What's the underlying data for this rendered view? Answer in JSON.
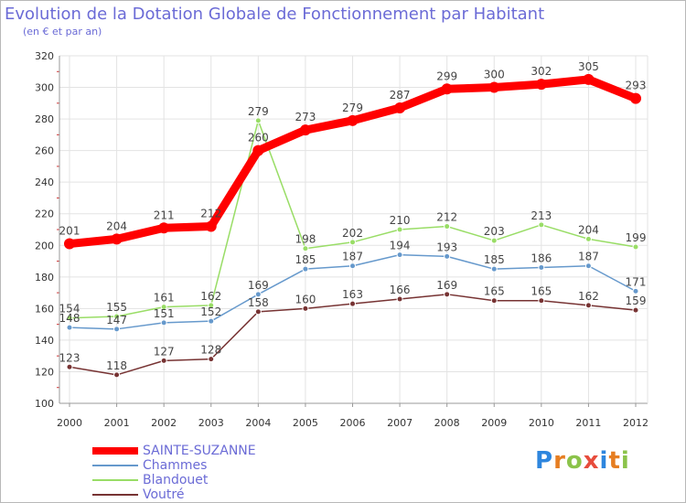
{
  "chart_data": {
    "type": "line",
    "title": "Evolution de la Dotation Globale de Fonctionnement par Habitant",
    "subtitle": "(en € et par an)",
    "xlabel": "",
    "ylabel": "",
    "ylim": [
      100,
      320
    ],
    "yticks": [
      100,
      120,
      140,
      160,
      180,
      200,
      220,
      240,
      260,
      280,
      300,
      320
    ],
    "categories": [
      "2000",
      "2001",
      "2002",
      "2003",
      "2004",
      "2005",
      "2006",
      "2007",
      "2008",
      "2009",
      "2010",
      "2011",
      "2012"
    ],
    "grid": true,
    "legend_position": "bottom-left",
    "series": [
      {
        "name": "SAINTE-SUZANNE",
        "color": "#ff0000",
        "values": [
          201,
          204,
          211,
          212,
          260,
          273,
          279,
          287,
          299,
          300,
          302,
          305,
          293
        ]
      },
      {
        "name": "Chammes",
        "color": "#6699cc",
        "values": [
          148,
          147,
          151,
          152,
          169,
          185,
          187,
          194,
          193,
          185,
          186,
          187,
          171
        ]
      },
      {
        "name": "Blandouet",
        "color": "#99dd66",
        "values": [
          154,
          155,
          161,
          162,
          279,
          198,
          202,
          210,
          212,
          203,
          213,
          204,
          199
        ]
      },
      {
        "name": "Voutré",
        "color": "#773333",
        "values": [
          123,
          118,
          127,
          128,
          158,
          160,
          163,
          166,
          169,
          165,
          165,
          162,
          159
        ]
      }
    ]
  },
  "brand": {
    "letters": [
      "P",
      "r",
      "o",
      "x",
      "i",
      "t",
      "i"
    ],
    "colors": [
      "#2e86de",
      "#e67e22",
      "#8bc34a",
      "#e74c3c",
      "#2e86de",
      "#e67e22",
      "#8bc34a"
    ]
  }
}
